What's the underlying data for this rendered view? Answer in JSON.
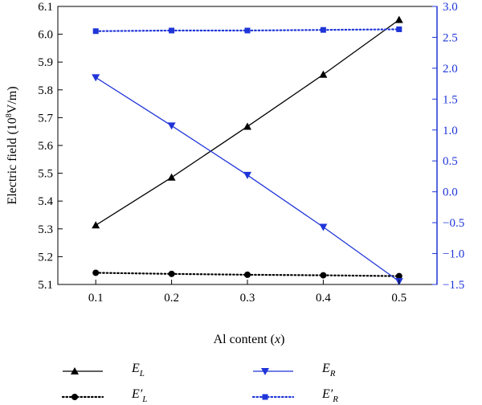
{
  "chart_data": {
    "type": "line",
    "x": [
      0.1,
      0.2,
      0.3,
      0.4,
      0.5
    ],
    "xlabel_main": "Al content (",
    "xlabel_var": "x",
    "xlabel_end": ")",
    "xlim": [
      0.05,
      0.55
    ],
    "xticks": [
      "0.1",
      "0.2",
      "0.3",
      "0.4",
      "0.5"
    ],
    "ylabel_left_pre": "Electric field (10",
    "ylabel_left_sup": "8",
    "ylabel_left_post": "V/m)",
    "ylim_left": [
      5.1,
      6.1
    ],
    "yticks_left": [
      "5.1",
      "5.2",
      "5.3",
      "5.4",
      "5.5",
      "5.6",
      "5.7",
      "5.8",
      "5.9",
      "6.0",
      "6.1"
    ],
    "ylim_right": [
      -1.5,
      3.0
    ],
    "yticks_right": [
      "−1.5",
      "−1.0",
      "−0.5",
      "0.0",
      "0.5",
      "1.0",
      "1.5",
      "2.0",
      "2.5",
      "3.0"
    ],
    "grid": false,
    "legend_placement": "bottom",
    "series": [
      {
        "name": "E",
        "sub": "L",
        "prime": false,
        "axis": "left",
        "color": "#000000",
        "marker": "triangle-up",
        "line": "solid",
        "values": [
          5.313,
          5.485,
          5.668,
          5.855,
          6.052
        ]
      },
      {
        "name": "E",
        "sub": "L",
        "prime": true,
        "axis": "left",
        "color": "#000000",
        "marker": "circle",
        "line": "dotted",
        "values": [
          5.142,
          5.138,
          5.135,
          5.133,
          5.13
        ]
      },
      {
        "name": "E",
        "sub": "R",
        "prime": false,
        "axis": "right",
        "color": "#1f35d8",
        "marker": "triangle-down",
        "line": "solid",
        "values": [
          1.85,
          1.07,
          0.27,
          -0.57,
          -1.45
        ]
      },
      {
        "name": "E",
        "sub": "R",
        "prime": true,
        "axis": "right",
        "color": "#1f35d8",
        "marker": "square",
        "line": "dotted",
        "values": [
          2.6,
          2.61,
          2.61,
          2.62,
          2.63
        ]
      }
    ]
  }
}
